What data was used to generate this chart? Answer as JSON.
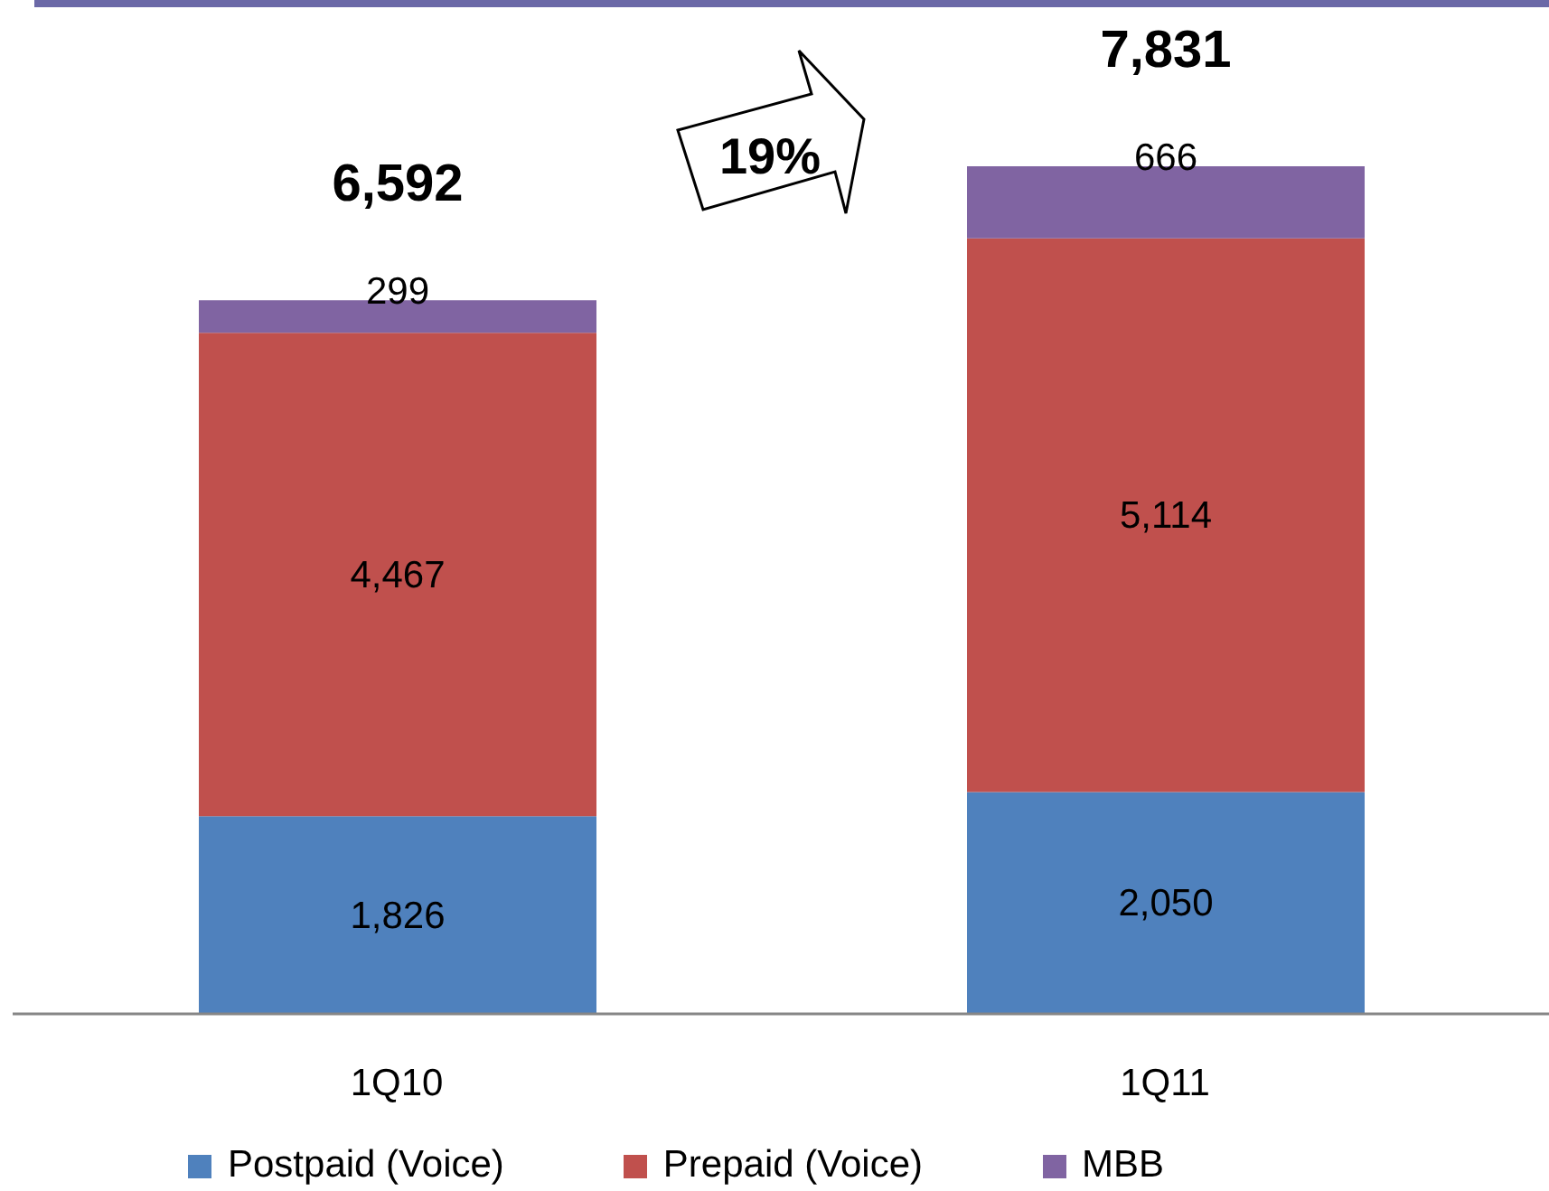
{
  "chart_data": {
    "type": "bar",
    "categories": [
      "1Q10",
      "1Q11"
    ],
    "stacked": true,
    "series": [
      {
        "name": "Postpaid (Voice)",
        "color": "#4f81bd",
        "values": [
          1826,
          2050
        ],
        "value_labels": [
          "1,826",
          "2,050"
        ]
      },
      {
        "name": "Prepaid (Voice)",
        "color": "#c0504d",
        "values": [
          4467,
          5114
        ],
        "value_labels": [
          "4,467",
          "5,114"
        ]
      },
      {
        "name": "MBB",
        "color": "#8064a2",
        "values": [
          299,
          666
        ],
        "value_labels": [
          "299",
          "666"
        ]
      }
    ],
    "totals": [
      "6,592",
      "7,831"
    ],
    "annotations": [
      "19%"
    ],
    "legend": "bottom"
  }
}
